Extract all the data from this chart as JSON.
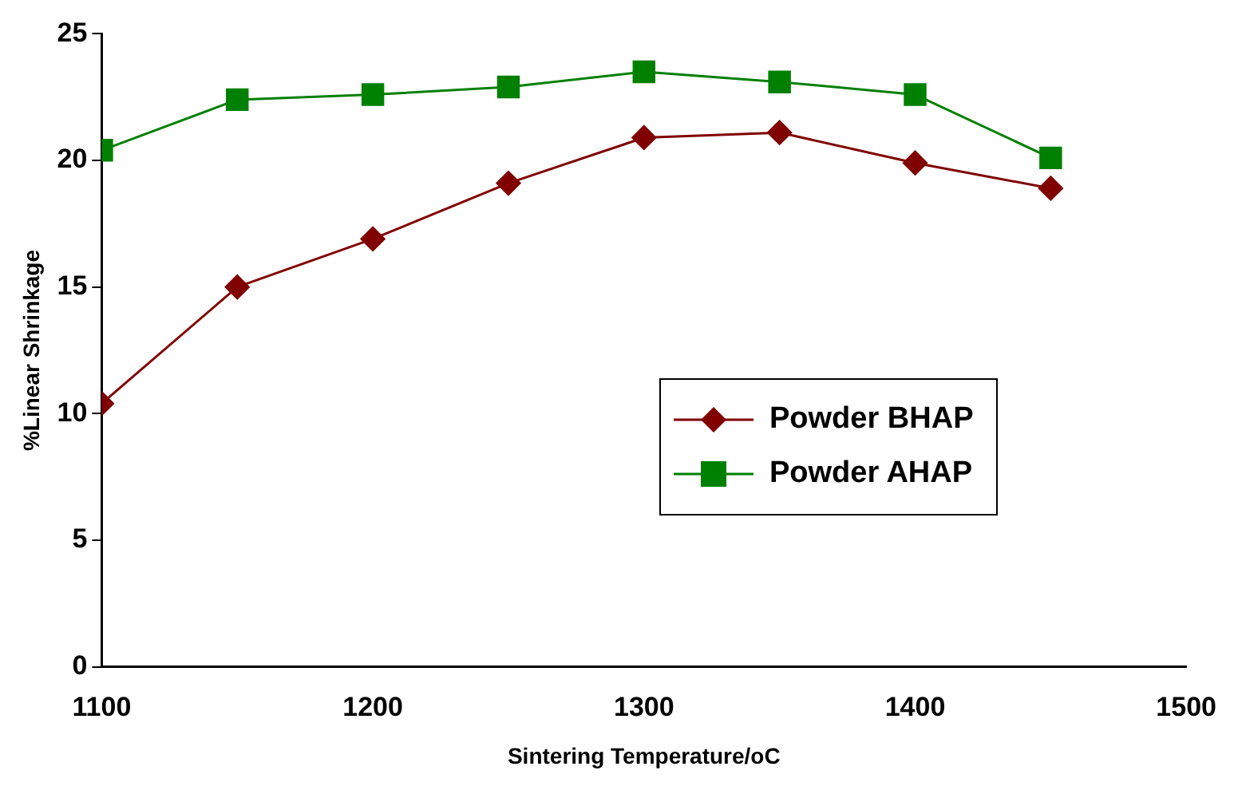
{
  "chart_data": {
    "type": "line",
    "xlabel": "Sintering Temperature/oC",
    "ylabel": "%Linear Shrinkage",
    "x": [
      1100,
      1150,
      1200,
      1250,
      1300,
      1350,
      1400,
      1450
    ],
    "series": [
      {
        "name": "Powder BHAP",
        "color": "#800000",
        "marker": "diamond",
        "values": [
          10.4,
          15.0,
          16.9,
          19.1,
          20.9,
          21.1,
          19.9,
          18.9
        ]
      },
      {
        "name": "Powder AHAP",
        "color": "#008000",
        "marker": "square",
        "values": [
          20.4,
          22.4,
          22.6,
          22.9,
          23.5,
          23.1,
          22.6,
          20.1
        ]
      }
    ],
    "xlim": [
      1100,
      1500
    ],
    "xticks": [
      1100,
      1200,
      1300,
      1400,
      1500
    ],
    "ylim": [
      0,
      25
    ],
    "yticks": [
      0,
      5,
      10,
      15,
      20,
      25
    ],
    "grid": false,
    "legend": "right",
    "line_style": "solid"
  }
}
